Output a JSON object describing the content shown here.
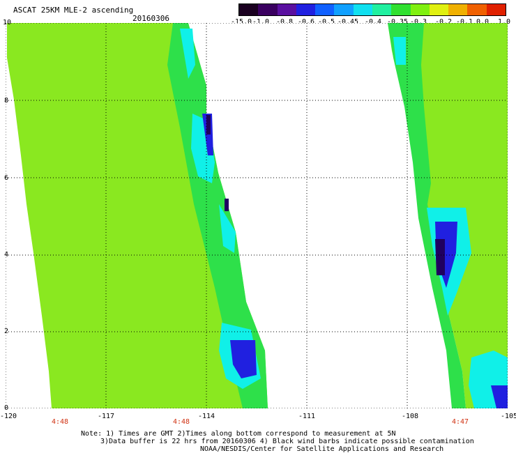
{
  "header": {
    "title": "ASCAT 25KM MLE-2 ascending",
    "date": "20160306"
  },
  "colorbar": {
    "labels": [
      "-15.0",
      "-1.0",
      "-0.8",
      "-0.6",
      "-0.5",
      "-0.45",
      "-0.4",
      "-0.35",
      "-0.3",
      "-0.2",
      "-0.1",
      "0.0",
      "1.0"
    ],
    "colors": [
      "#1a0020",
      "#3a0060",
      "#5a10a0",
      "#2020e0",
      "#1060ff",
      "#10a0ff",
      "#10e0f0",
      "#20f0a0",
      "#30e030",
      "#80f010",
      "#e0f010",
      "#f0b000",
      "#f06000",
      "#e02000"
    ]
  },
  "map": {
    "lon_ticks": [
      "-120",
      "-117",
      "-114",
      "-111",
      "-108",
      "-105"
    ],
    "lat_ticks": [
      "0",
      "2",
      "4",
      "6",
      "8",
      "10"
    ],
    "times": [
      "4:48",
      "4:48",
      "4:47"
    ],
    "swath_color": "#8ae820",
    "edge_color": "#2ee04a",
    "cyan_color": "#10f0e8",
    "blue_color": "#2020e0",
    "dark_color": "#200060"
  },
  "notes": {
    "line1": "Note: 1) Times are GMT 2)Times along bottom correspond to measurement at 5N",
    "line2": "3)Data buffer is 22 hrs from 20160306 4) Black wind barbs indicate possible contamination",
    "line3": "NOAA/NESDIS/Center for Satellite Applications and Research"
  }
}
